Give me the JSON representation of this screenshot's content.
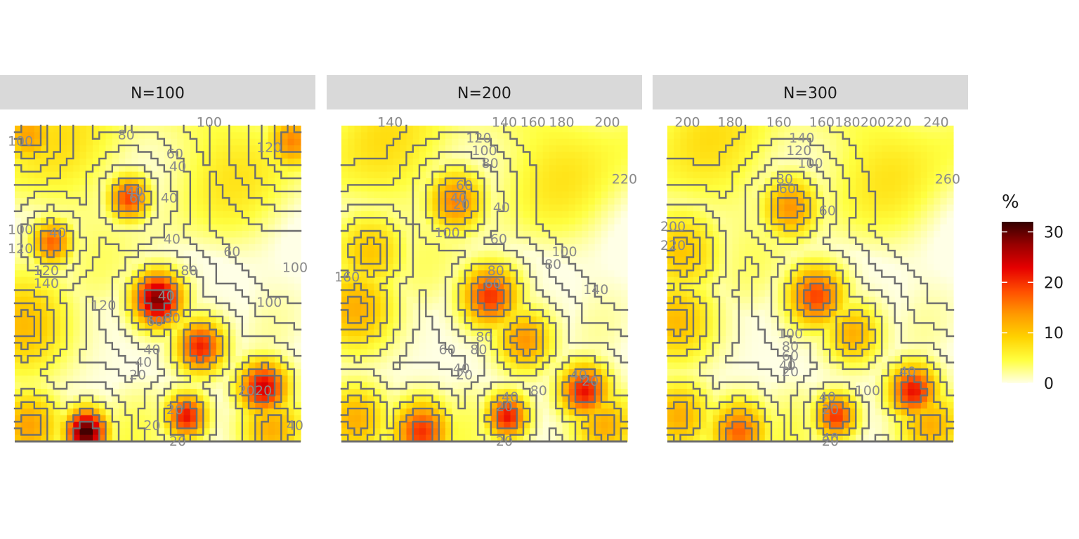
{
  "chart_data": {
    "type": "heatmap",
    "legend": {
      "title": "%",
      "position": "right",
      "range": [
        0,
        32
      ],
      "ticks": [
        0,
        10,
        20,
        30
      ],
      "tick_labels": [
        "0",
        "10",
        "20",
        "30"
      ],
      "colors": [
        "#ffffe6",
        "#ffff40",
        "#ffd200",
        "#ff9900",
        "#ff4d00",
        "#e60000",
        "#990000",
        "#330000"
      ]
    },
    "contour_color": "#6e6e6e",
    "grid": false,
    "panels": [
      {
        "strip": "N=100",
        "hotspots": [
          {
            "x": 0.05,
            "y": 0.03,
            "v": 13,
            "s": 0.07
          },
          {
            "x": 0.97,
            "y": 0.05,
            "v": 15,
            "s": 0.06
          },
          {
            "x": 0.4,
            "y": 0.23,
            "v": 19,
            "s": 0.05
          },
          {
            "x": 0.13,
            "y": 0.37,
            "v": 17,
            "s": 0.05
          },
          {
            "x": 0.03,
            "y": 0.63,
            "v": 11,
            "s": 0.12
          },
          {
            "x": 0.5,
            "y": 0.55,
            "v": 29,
            "s": 0.06
          },
          {
            "x": 0.65,
            "y": 0.7,
            "v": 21,
            "s": 0.06
          },
          {
            "x": 0.87,
            "y": 0.83,
            "v": 24,
            "s": 0.06
          },
          {
            "x": 0.6,
            "y": 0.92,
            "v": 22,
            "s": 0.05
          },
          {
            "x": 0.25,
            "y": 0.97,
            "v": 32,
            "s": 0.05
          },
          {
            "x": 0.05,
            "y": 0.95,
            "v": 13,
            "s": 0.08
          },
          {
            "x": 0.9,
            "y": 0.96,
            "v": 12,
            "s": 0.08
          }
        ],
        "contour_labels": [
          {
            "t": "100",
            "x": 0.02,
            "y": 0.05
          },
          {
            "t": "80",
            "x": 0.39,
            "y": 0.03
          },
          {
            "t": "100",
            "x": 0.68,
            "y": -0.01
          },
          {
            "t": "120",
            "x": 0.89,
            "y": 0.07
          },
          {
            "t": "60",
            "x": 0.56,
            "y": 0.09
          },
          {
            "t": "40",
            "x": 0.57,
            "y": 0.13
          },
          {
            "t": "40",
            "x": 0.42,
            "y": 0.21
          },
          {
            "t": "60",
            "x": 0.43,
            "y": 0.23
          },
          {
            "t": "40",
            "x": 0.54,
            "y": 0.23
          },
          {
            "t": "40",
            "x": 0.55,
            "y": 0.36
          },
          {
            "t": "100",
            "x": 0.02,
            "y": 0.33
          },
          {
            "t": "40",
            "x": 0.15,
            "y": 0.34
          },
          {
            "t": "120",
            "x": 0.02,
            "y": 0.39
          },
          {
            "t": "60",
            "x": 0.76,
            "y": 0.4
          },
          {
            "t": "100",
            "x": 0.98,
            "y": 0.45
          },
          {
            "t": "120",
            "x": 0.11,
            "y": 0.46
          },
          {
            "t": "140",
            "x": 0.11,
            "y": 0.5
          },
          {
            "t": "80",
            "x": 0.61,
            "y": 0.46
          },
          {
            "t": "120",
            "x": 0.31,
            "y": 0.57
          },
          {
            "t": "40",
            "x": 0.53,
            "y": 0.54
          },
          {
            "t": "100",
            "x": 0.89,
            "y": 0.56
          },
          {
            "t": "60",
            "x": 0.49,
            "y": 0.62
          },
          {
            "t": "80",
            "x": 0.55,
            "y": 0.61
          },
          {
            "t": "40",
            "x": 0.48,
            "y": 0.71
          },
          {
            "t": "40",
            "x": 0.45,
            "y": 0.75
          },
          {
            "t": "20",
            "x": 0.43,
            "y": 0.79
          },
          {
            "t": "20",
            "x": 0.81,
            "y": 0.84
          },
          {
            "t": "20",
            "x": 0.87,
            "y": 0.84
          },
          {
            "t": "20",
            "x": 0.56,
            "y": 0.9
          },
          {
            "t": "20",
            "x": 0.48,
            "y": 0.95
          },
          {
            "t": "40",
            "x": 0.98,
            "y": 0.95
          },
          {
            "t": "20",
            "x": 0.57,
            "y": 1.0
          }
        ]
      },
      {
        "strip": "N=200",
        "hotspots": [
          {
            "x": 0.4,
            "y": 0.24,
            "v": 15,
            "s": 0.07
          },
          {
            "x": 0.1,
            "y": 0.4,
            "v": 10,
            "s": 0.09
          },
          {
            "x": 0.05,
            "y": 0.58,
            "v": 12,
            "s": 0.1
          },
          {
            "x": 0.52,
            "y": 0.54,
            "v": 20,
            "s": 0.07
          },
          {
            "x": 0.64,
            "y": 0.68,
            "v": 14,
            "s": 0.07
          },
          {
            "x": 0.85,
            "y": 0.84,
            "v": 22,
            "s": 0.06
          },
          {
            "x": 0.58,
            "y": 0.92,
            "v": 22,
            "s": 0.05
          },
          {
            "x": 0.28,
            "y": 0.97,
            "v": 20,
            "s": 0.07
          },
          {
            "x": 0.05,
            "y": 0.93,
            "v": 12,
            "s": 0.08
          },
          {
            "x": 0.92,
            "y": 0.95,
            "v": 12,
            "s": 0.08
          }
        ],
        "contour_labels": [
          {
            "t": "140",
            "x": 0.17,
            "y": -0.01
          },
          {
            "t": "140",
            "x": 0.57,
            "y": -0.01
          },
          {
            "t": "160",
            "x": 0.67,
            "y": -0.01
          },
          {
            "t": "180",
            "x": 0.77,
            "y": -0.01
          },
          {
            "t": "200",
            "x": 0.93,
            "y": -0.01
          },
          {
            "t": "120",
            "x": 0.48,
            "y": 0.04
          },
          {
            "t": "100",
            "x": 0.5,
            "y": 0.08
          },
          {
            "t": "80",
            "x": 0.52,
            "y": 0.12
          },
          {
            "t": "220",
            "x": 0.99,
            "y": 0.17
          },
          {
            "t": "60",
            "x": 0.43,
            "y": 0.19
          },
          {
            "t": "40",
            "x": 0.41,
            "y": 0.23
          },
          {
            "t": "20",
            "x": 0.42,
            "y": 0.25
          },
          {
            "t": "40",
            "x": 0.56,
            "y": 0.26
          },
          {
            "t": "100",
            "x": 0.37,
            "y": 0.34
          },
          {
            "t": "60",
            "x": 0.55,
            "y": 0.36
          },
          {
            "t": "100",
            "x": 0.78,
            "y": 0.4
          },
          {
            "t": "80",
            "x": 0.74,
            "y": 0.44
          },
          {
            "t": "80",
            "x": 0.54,
            "y": 0.46
          },
          {
            "t": "160",
            "x": 0.02,
            "y": 0.48
          },
          {
            "t": "60",
            "x": 0.53,
            "y": 0.5
          },
          {
            "t": "140",
            "x": 0.89,
            "y": 0.52
          },
          {
            "t": "80",
            "x": 0.5,
            "y": 0.67
          },
          {
            "t": "60",
            "x": 0.37,
            "y": 0.71
          },
          {
            "t": "80",
            "x": 0.48,
            "y": 0.71
          },
          {
            "t": "40",
            "x": 0.42,
            "y": 0.77
          },
          {
            "t": "20",
            "x": 0.43,
            "y": 0.79
          },
          {
            "t": "40",
            "x": 0.83,
            "y": 0.79
          },
          {
            "t": "20",
            "x": 0.87,
            "y": 0.81
          },
          {
            "t": "80",
            "x": 0.69,
            "y": 0.84
          },
          {
            "t": "40",
            "x": 0.59,
            "y": 0.86
          },
          {
            "t": "20",
            "x": 0.57,
            "y": 0.89
          },
          {
            "t": "20",
            "x": 0.57,
            "y": 1.0
          }
        ]
      },
      {
        "strip": "N=300",
        "hotspots": [
          {
            "x": 0.43,
            "y": 0.26,
            "v": 14,
            "s": 0.07
          },
          {
            "x": 0.05,
            "y": 0.4,
            "v": 10,
            "s": 0.1
          },
          {
            "x": 0.03,
            "y": 0.62,
            "v": 11,
            "s": 0.1
          },
          {
            "x": 0.52,
            "y": 0.54,
            "v": 19,
            "s": 0.07
          },
          {
            "x": 0.65,
            "y": 0.66,
            "v": 12,
            "s": 0.07
          },
          {
            "x": 0.86,
            "y": 0.84,
            "v": 22,
            "s": 0.06
          },
          {
            "x": 0.59,
            "y": 0.92,
            "v": 20,
            "s": 0.05
          },
          {
            "x": 0.25,
            "y": 0.97,
            "v": 17,
            "s": 0.07
          },
          {
            "x": 0.04,
            "y": 0.92,
            "v": 12,
            "s": 0.08
          },
          {
            "x": 0.92,
            "y": 0.95,
            "v": 12,
            "s": 0.08
          }
        ],
        "contour_labels": [
          {
            "t": "200",
            "x": 0.07,
            "y": -0.01
          },
          {
            "t": "180",
            "x": 0.22,
            "y": -0.01
          },
          {
            "t": "160",
            "x": 0.39,
            "y": -0.01
          },
          {
            "t": "160",
            "x": 0.54,
            "y": -0.01
          },
          {
            "t": "180",
            "x": 0.63,
            "y": -0.01
          },
          {
            "t": "200",
            "x": 0.72,
            "y": -0.01
          },
          {
            "t": "220",
            "x": 0.81,
            "y": -0.01
          },
          {
            "t": "240",
            "x": 0.94,
            "y": -0.01
          },
          {
            "t": "140",
            "x": 0.47,
            "y": 0.04
          },
          {
            "t": "120",
            "x": 0.46,
            "y": 0.08
          },
          {
            "t": "100",
            "x": 0.5,
            "y": 0.12
          },
          {
            "t": "260",
            "x": 0.98,
            "y": 0.17
          },
          {
            "t": "80",
            "x": 0.41,
            "y": 0.17
          },
          {
            "t": "60",
            "x": 0.42,
            "y": 0.2
          },
          {
            "t": "60",
            "x": 0.56,
            "y": 0.27
          },
          {
            "t": "200",
            "x": 0.02,
            "y": 0.32
          },
          {
            "t": "220",
            "x": 0.02,
            "y": 0.38
          },
          {
            "t": "100",
            "x": 0.43,
            "y": 0.66
          },
          {
            "t": "80",
            "x": 0.43,
            "y": 0.7
          },
          {
            "t": "60",
            "x": 0.43,
            "y": 0.73
          },
          {
            "t": "40",
            "x": 0.42,
            "y": 0.76
          },
          {
            "t": "20",
            "x": 0.43,
            "y": 0.78
          },
          {
            "t": "40",
            "x": 0.84,
            "y": 0.78
          },
          {
            "t": "100",
            "x": 0.7,
            "y": 0.84
          },
          {
            "t": "40",
            "x": 0.56,
            "y": 0.86
          },
          {
            "t": "20",
            "x": 0.57,
            "y": 0.9
          },
          {
            "t": "40",
            "x": 0.57,
            "y": 0.99
          },
          {
            "t": "20",
            "x": 0.57,
            "y": 1.0
          }
        ]
      }
    ]
  }
}
